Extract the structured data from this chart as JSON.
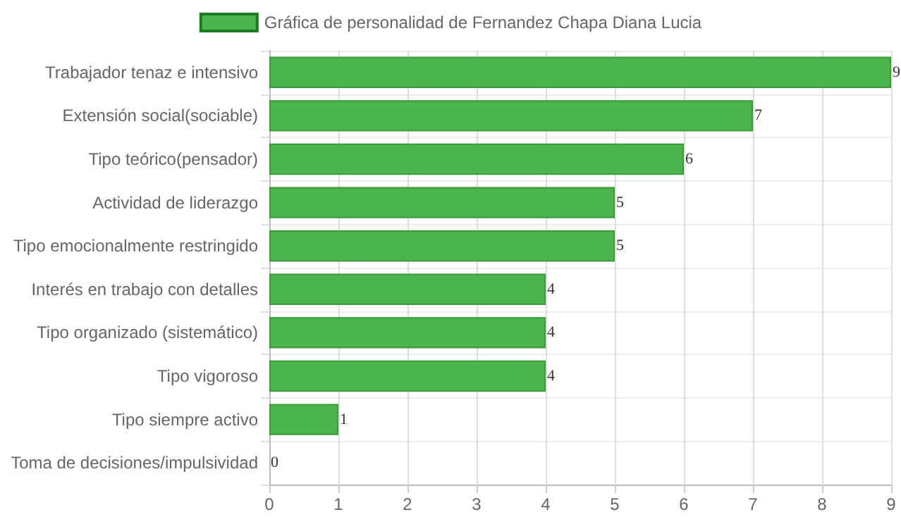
{
  "chart_data": {
    "type": "bar",
    "orientation": "horizontal",
    "categories": [
      "Trabajador tenaz e intensivo",
      "Extensión social(sociable)",
      "Tipo teórico(pensador)",
      "Actividad de liderazgo",
      "Tipo emocionalmente restringido",
      "Interés en trabajo con detalles",
      "Tipo organizado (sistemático)",
      "Tipo vigoroso",
      "Tipo siempre activo",
      "Toma de decisiones/impulsividad"
    ],
    "series": [
      {
        "name": "Gráfica de personalidad de Fernandez Chapa Diana Lucia",
        "color": "#4cb44c",
        "values": [
          9,
          7,
          6,
          5,
          5,
          4,
          4,
          4,
          1,
          0
        ]
      }
    ],
    "xlim": [
      0,
      9
    ],
    "xticks": [
      0,
      1,
      2,
      3,
      4,
      5,
      6,
      7,
      8,
      9
    ],
    "grid": true,
    "legend": "top",
    "data_labels": true
  }
}
